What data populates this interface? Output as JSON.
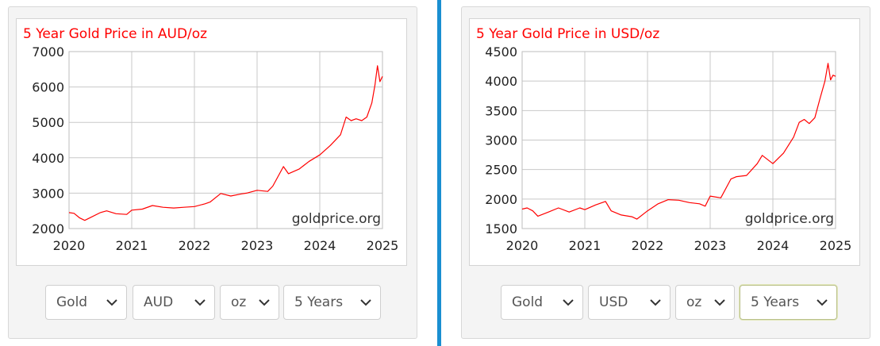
{
  "charts": [
    {
      "title": "5 Year Gold Price in AUD/oz",
      "watermark": "goldprice.org",
      "controls": {
        "metal": "Gold",
        "currency": "AUD",
        "unit": "oz",
        "period": "5 Years"
      }
    },
    {
      "title": "5 Year Gold Price in USD/oz",
      "watermark": "goldprice.org",
      "controls": {
        "metal": "Gold",
        "currency": "USD",
        "unit": "oz",
        "period": "5 Years"
      }
    }
  ],
  "chart_data": [
    {
      "type": "line",
      "title": "5 Year Gold Price in AUD/oz",
      "xlim": [
        2020,
        2025
      ],
      "ylim": [
        2000,
        7000
      ],
      "x_ticks": [
        2020,
        2021,
        2022,
        2023,
        2024,
        2025
      ],
      "y_ticks": [
        2000,
        3000,
        4000,
        5000,
        6000,
        7000
      ],
      "grid": true,
      "line_color": "#ff0000",
      "series": [
        {
          "x": [
            2020.0,
            2020.08,
            2020.17,
            2020.25,
            2020.33,
            2020.5,
            2020.6,
            2020.75,
            2020.92,
            2021.0,
            2021.17,
            2021.33,
            2021.5,
            2021.67,
            2021.83,
            2022.0,
            2022.17,
            2022.25,
            2022.42,
            2022.58,
            2022.75,
            2022.83,
            2023.0,
            2023.17,
            2023.25,
            2023.42,
            2023.5,
            2023.67,
            2023.83,
            2024.0,
            2024.17,
            2024.33,
            2024.42,
            2024.5,
            2024.58,
            2024.67,
            2024.75,
            2024.83,
            2024.88,
            2024.92,
            2024.96,
            2025.0
          ],
          "y": [
            2450,
            2430,
            2300,
            2230,
            2300,
            2450,
            2500,
            2420,
            2400,
            2520,
            2550,
            2650,
            2600,
            2580,
            2600,
            2620,
            2700,
            2750,
            2990,
            2920,
            2980,
            3000,
            3080,
            3050,
            3200,
            3750,
            3550,
            3680,
            3900,
            4080,
            4350,
            4650,
            5150,
            5050,
            5100,
            5050,
            5150,
            5550,
            6050,
            6600,
            6150,
            6300
          ]
        }
      ]
    },
    {
      "type": "line",
      "title": "5 Year Gold Price in USD/oz",
      "xlim": [
        2020,
        2025
      ],
      "ylim": [
        1500,
        4500
      ],
      "x_ticks": [
        2020,
        2021,
        2022,
        2023,
        2024,
        2025
      ],
      "y_ticks": [
        1500,
        2000,
        2500,
        3000,
        3500,
        4000,
        4500
      ],
      "grid": true,
      "line_color": "#ff0000",
      "series": [
        {
          "x": [
            2020.0,
            2020.08,
            2020.17,
            2020.25,
            2020.42,
            2020.58,
            2020.75,
            2020.92,
            2021.0,
            2021.17,
            2021.33,
            2021.42,
            2021.58,
            2021.75,
            2021.83,
            2022.0,
            2022.17,
            2022.33,
            2022.5,
            2022.67,
            2022.83,
            2022.92,
            2023.0,
            2023.17,
            2023.33,
            2023.42,
            2023.58,
            2023.75,
            2023.83,
            2024.0,
            2024.17,
            2024.33,
            2024.42,
            2024.5,
            2024.58,
            2024.67,
            2024.75,
            2024.83,
            2024.88,
            2024.92,
            2024.96,
            2025.0
          ],
          "y": [
            1830,
            1850,
            1800,
            1710,
            1780,
            1850,
            1780,
            1850,
            1820,
            1900,
            1960,
            1800,
            1730,
            1700,
            1660,
            1800,
            1920,
            1990,
            1980,
            1940,
            1920,
            1880,
            2050,
            2020,
            2340,
            2380,
            2400,
            2600,
            2740,
            2600,
            2780,
            3050,
            3300,
            3350,
            3280,
            3380,
            3700,
            4000,
            4300,
            4020,
            4100,
            4080
          ]
        }
      ]
    }
  ]
}
